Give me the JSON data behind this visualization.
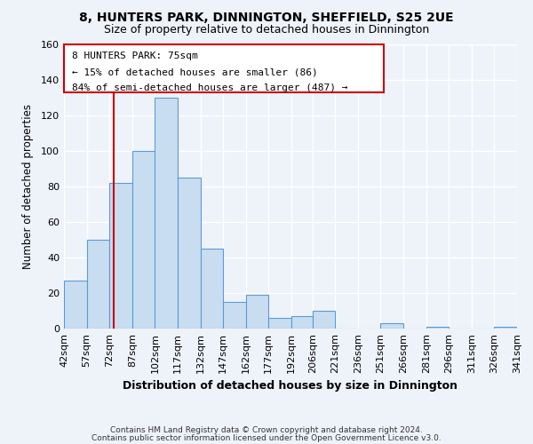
{
  "title1": "8, HUNTERS PARK, DINNINGTON, SHEFFIELD, S25 2UE",
  "title2": "Size of property relative to detached houses in Dinnington",
  "xlabel": "Distribution of detached houses by size in Dinnington",
  "ylabel": "Number of detached properties",
  "bar_left_edges": [
    42,
    57,
    72,
    87,
    102,
    117,
    132,
    147,
    162,
    177,
    192,
    206,
    221,
    236,
    251,
    266,
    281,
    296,
    311,
    326
  ],
  "bar_widths": [
    15,
    15,
    15,
    15,
    15,
    15,
    15,
    15,
    15,
    15,
    14,
    15,
    15,
    15,
    15,
    15,
    15,
    15,
    15,
    15
  ],
  "bar_heights": [
    27,
    50,
    82,
    100,
    130,
    85,
    45,
    15,
    19,
    6,
    7,
    10,
    0,
    0,
    3,
    0,
    1,
    0,
    0,
    1
  ],
  "bar_color": "#c9ddf1",
  "bar_edge_color": "#5b9bd5",
  "x_tick_labels": [
    "42sqm",
    "57sqm",
    "72sqm",
    "87sqm",
    "102sqm",
    "117sqm",
    "132sqm",
    "147sqm",
    "162sqm",
    "177sqm",
    "192sqm",
    "206sqm",
    "221sqm",
    "236sqm",
    "251sqm",
    "266sqm",
    "281sqm",
    "296sqm",
    "311sqm",
    "326sqm",
    "341sqm"
  ],
  "x_tick_positions": [
    42,
    57,
    72,
    87,
    102,
    117,
    132,
    147,
    162,
    177,
    192,
    206,
    221,
    236,
    251,
    266,
    281,
    296,
    311,
    326,
    341
  ],
  "ylim": [
    0,
    160
  ],
  "yticks": [
    0,
    20,
    40,
    60,
    80,
    100,
    120,
    140,
    160
  ],
  "red_line_x": 75,
  "annotation_title": "8 HUNTERS PARK: 75sqm",
  "annotation_line1": "← 15% of detached houses are smaller (86)",
  "annotation_line2": "84% of semi-detached houses are larger (487) →",
  "footer1": "Contains HM Land Registry data © Crown copyright and database right 2024.",
  "footer2": "Contains public sector information licensed under the Open Government Licence v3.0.",
  "background_color": "#eef2f9",
  "grid_color": "#ffffff"
}
